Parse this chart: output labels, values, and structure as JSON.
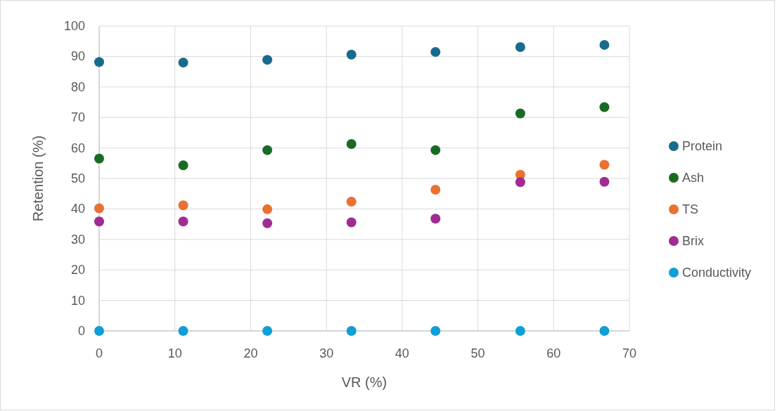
{
  "chart_data": {
    "type": "scatter",
    "xlabel": "VR (%)",
    "ylabel": "Retention (%)",
    "x": [
      0,
      11.1,
      22.2,
      33.3,
      44.4,
      55.6,
      66.7
    ],
    "series": [
      {
        "name": "Protein",
        "color": "#196b8e",
        "values": [
          88.2,
          88,
          88.9,
          90.6,
          91.5,
          93.1,
          93.8
        ]
      },
      {
        "name": "Ash",
        "color": "#196b24",
        "values": [
          56.5,
          54.3,
          59.3,
          61.3,
          59.3,
          71.3,
          73.4
        ]
      },
      {
        "name": "TS",
        "color": "#e97132",
        "values": [
          40.2,
          41.2,
          39.9,
          42.4,
          46.3,
          51.2,
          54.5
        ]
      },
      {
        "name": "Brix",
        "color": "#a02b93",
        "values": [
          35.9,
          35.9,
          35.3,
          35.6,
          36.8,
          48.8,
          48.9
        ]
      },
      {
        "name": "Conductivity",
        "color": "#0f9ed5",
        "values": [
          0,
          0,
          0,
          0,
          0,
          0,
          0
        ]
      }
    ],
    "xlim": [
      0,
      70
    ],
    "xticks": [
      0,
      10,
      20,
      30,
      40,
      50,
      60,
      70
    ],
    "ylim": [
      0,
      100
    ],
    "yticks": [
      0,
      10,
      20,
      30,
      40,
      50,
      60,
      70,
      80,
      90,
      100
    ],
    "grid": true,
    "legend": "right",
    "marker": "circle"
  }
}
